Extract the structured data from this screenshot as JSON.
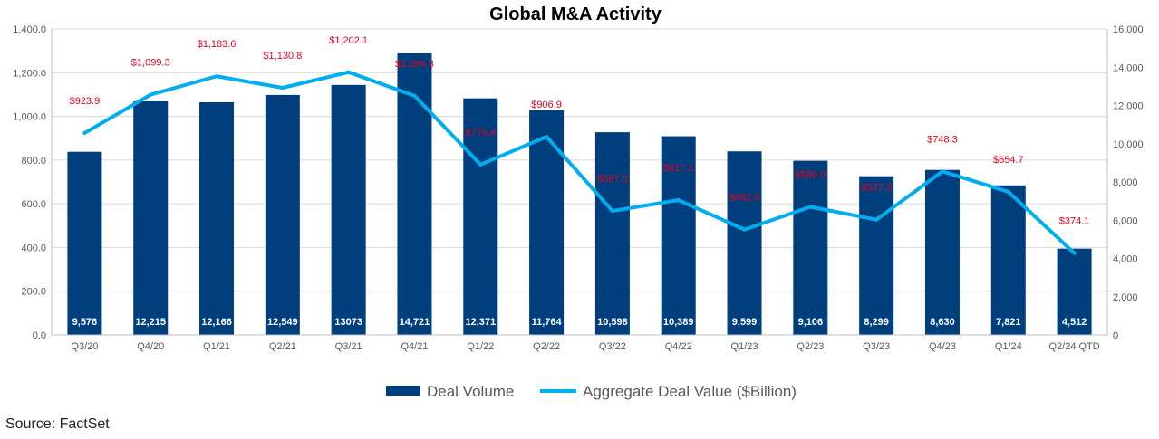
{
  "colors": {
    "bar": "#003f7d",
    "line": "#00aeef",
    "value_label": "#e8001c",
    "grid": "#d9d9d9",
    "axis_text": "#595959"
  },
  "source": "Source: FactSet",
  "chart_data": {
    "type": "bar",
    "title": "Global M&A Activity",
    "categories": [
      "Q3/20",
      "Q4/20",
      "Q1/21",
      "Q2/21",
      "Q3/21",
      "Q4/21",
      "Q1/22",
      "Q2/22",
      "Q3/22",
      "Q4/22",
      "Q1/23",
      "Q2/23",
      "Q3/23",
      "Q4/23",
      "Q1/24",
      "Q2/24 QTD"
    ],
    "y_left": {
      "min": 0,
      "max": 1400,
      "step": 200,
      "tick_labels": [
        "0.0",
        "200.0",
        "400.0",
        "600.0",
        "800.0",
        "1,000.0",
        "1,200.0",
        "1,400.0"
      ]
    },
    "y_right": {
      "min": 0,
      "max": 16000,
      "step": 2000,
      "tick_labels": [
        "0",
        "2,000",
        "4,000",
        "6,000",
        "8,000",
        "10,000",
        "12,000",
        "14,000",
        "16,000"
      ]
    },
    "series": [
      {
        "name": "Deal Volume",
        "type": "bar",
        "axis": "right",
        "values": [
          9576,
          12215,
          12166,
          12549,
          13073,
          14721,
          12371,
          11764,
          10598,
          10389,
          9599,
          9106,
          8299,
          8630,
          7821,
          4512
        ],
        "labels": [
          "9,576",
          "12,215",
          "12,166",
          "12,549",
          "13073",
          "14,721",
          "12,371",
          "11,764",
          "10,598",
          "10,389",
          "9,599",
          "9,106",
          "8,299",
          "8,630",
          "7,821",
          "4,512"
        ]
      },
      {
        "name": "Aggregate Deal Value ($Billion)",
        "type": "line",
        "axis": "left",
        "values": [
          923.9,
          1099.3,
          1183.6,
          1130.8,
          1202.1,
          1094.3,
          779.4,
          906.9,
          567.3,
          617.1,
          482.0,
          586.0,
          527.3,
          748.3,
          654.7,
          374.1
        ],
        "labels": [
          "$923.9",
          "$1,099.3",
          "$1,183.6",
          "$1,130.8",
          "$1,202.1",
          "$1,094.3",
          "$779.4",
          "$906.9",
          "$567.3",
          "$617.1",
          "$482.0",
          "$586.0",
          "$527.3",
          "$748.3",
          "$654.7",
          "$374.1"
        ]
      }
    ],
    "legend": {
      "position": "bottom"
    },
    "grid": true
  }
}
